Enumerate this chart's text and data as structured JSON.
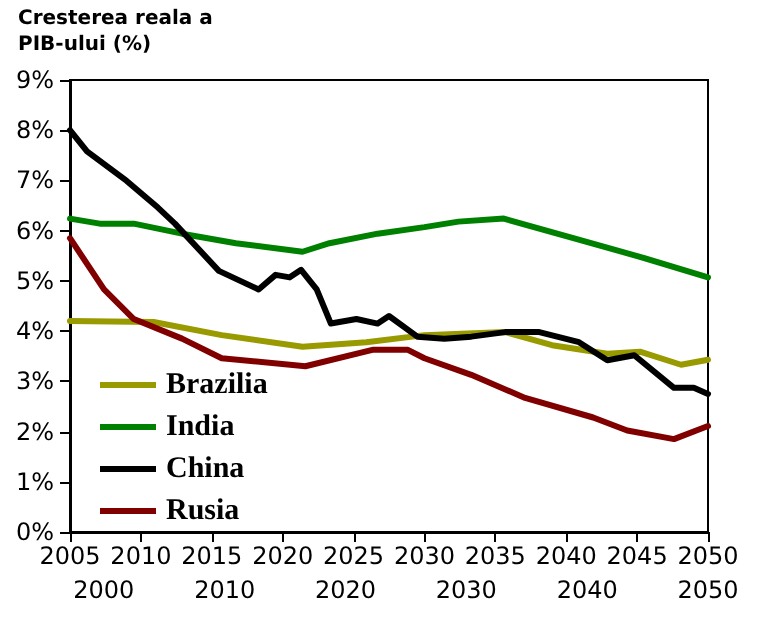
{
  "chart_data": {
    "type": "line",
    "title": "Cresterea reala a\nPIB-ului (%)",
    "series": [
      {
        "name": "Brazilia",
        "color": "#999900",
        "x": [
          2005,
          2010.9,
          2015.7,
          2021.4,
          2025.9,
          2030,
          2035.7,
          2039,
          2042.9,
          2045.2,
          2048.1,
          2050
        ],
        "values": [
          4.2,
          4.18,
          3.92,
          3.69,
          3.78,
          3.92,
          3.98,
          3.72,
          3.55,
          3.59,
          3.33,
          3.43
        ]
      },
      {
        "name": "India",
        "color": "#008000",
        "x": [
          2005,
          2007.1,
          2009.5,
          2012.9,
          2016.7,
          2021.4,
          2023.3,
          2026.7,
          2030,
          2032.4,
          2035.6,
          2040.5,
          2045.2,
          2050
        ],
        "values": [
          6.24,
          6.14,
          6.14,
          5.94,
          5.75,
          5.58,
          5.75,
          5.94,
          6.07,
          6.18,
          6.24,
          5.85,
          5.48,
          5.07
        ]
      },
      {
        "name": "China",
        "color": "#000000",
        "x": [
          2005,
          2006.2,
          2009,
          2011.2,
          2012.4,
          2015.5,
          2018.3,
          2019.5,
          2020.5,
          2021.3,
          2022.4,
          2023.4,
          2025.2,
          2026.7,
          2027.5,
          2029.5,
          2031.4,
          2033.3,
          2035.7,
          2038.1,
          2040.9,
          2042.9,
          2044.8,
          2047.6,
          2049,
          2050
        ],
        "values": [
          8.0,
          7.58,
          6.99,
          6.46,
          6.14,
          5.2,
          4.83,
          5.12,
          5.07,
          5.22,
          4.83,
          4.15,
          4.24,
          4.15,
          4.3,
          3.89,
          3.85,
          3.89,
          3.98,
          3.98,
          3.78,
          3.42,
          3.52,
          2.87,
          2.87,
          2.75
        ]
      },
      {
        "name": "Rusia",
        "color": "#800000",
        "x": [
          2005,
          2007.4,
          2009.5,
          2012.9,
          2015.7,
          2021.6,
          2026.4,
          2028.8,
          2030,
          2033.3,
          2037.1,
          2041.9,
          2044.3,
          2047.6,
          2050
        ],
        "values": [
          5.85,
          4.83,
          4.24,
          3.85,
          3.46,
          3.3,
          3.63,
          3.63,
          3.46,
          3.13,
          2.67,
          2.28,
          2.02,
          1.85,
          2.11
        ]
      }
    ],
    "xlim": [
      2005,
      2050
    ],
    "xticks": [
      2005,
      2010,
      2015,
      2020,
      2025,
      2030,
      2035,
      2040,
      2045,
      2050
    ],
    "x2lim": [
      1997.2,
      2050
    ],
    "x2ticks": [
      2000,
      2010,
      2020,
      2030,
      2040,
      2050
    ],
    "ylim": [
      0,
      9
    ],
    "yticks": [
      {
        "value": 0,
        "label": "0%"
      },
      {
        "value": 1,
        "label": "1%"
      },
      {
        "value": 2,
        "label": "2%"
      },
      {
        "value": 3,
        "label": "3%"
      },
      {
        "value": 4,
        "label": "4%"
      },
      {
        "value": 5,
        "label": "5%"
      },
      {
        "value": 6,
        "label": "6%"
      },
      {
        "value": 7,
        "label": "7%"
      },
      {
        "value": 8,
        "label": "8%"
      },
      {
        "value": 9,
        "label": "9%"
      }
    ],
    "grid": false,
    "legend": "bottom left",
    "marker": "none",
    "line_style": "solid"
  }
}
